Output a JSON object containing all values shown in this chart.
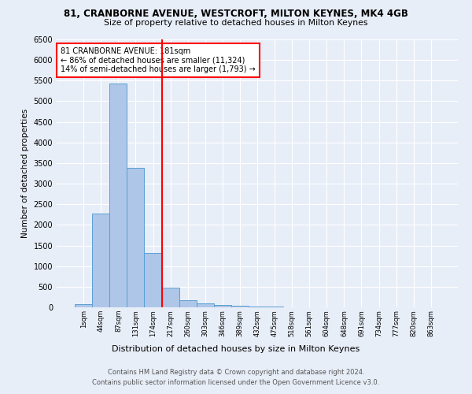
{
  "title": "81, CRANBORNE AVENUE, WESTCROFT, MILTON KEYNES, MK4 4GB",
  "subtitle": "Size of property relative to detached houses in Milton Keynes",
  "xlabel": "Distribution of detached houses by size in Milton Keynes",
  "ylabel": "Number of detached properties",
  "categories": [
    "1sqm",
    "44sqm",
    "87sqm",
    "131sqm",
    "174sqm",
    "217sqm",
    "260sqm",
    "303sqm",
    "346sqm",
    "389sqm",
    "432sqm",
    "475sqm",
    "518sqm",
    "561sqm",
    "604sqm",
    "648sqm",
    "691sqm",
    "734sqm",
    "777sqm",
    "820sqm",
    "863sqm"
  ],
  "bar_heights": [
    75,
    2280,
    5420,
    3380,
    1310,
    475,
    165,
    90,
    55,
    30,
    15,
    10,
    5,
    3,
    2,
    1,
    1,
    0,
    0,
    0,
    0
  ],
  "bar_color": "#aec6e8",
  "bar_edge_color": "#5a9fd4",
  "annotation_line1": "81 CRANBORNE AVENUE: 181sqm",
  "annotation_line2": "← 86% of detached houses are smaller (11,324)",
  "annotation_line3": "14% of semi-detached houses are larger (1,793) →",
  "ylim": [
    0,
    6500
  ],
  "yticks": [
    0,
    500,
    1000,
    1500,
    2000,
    2500,
    3000,
    3500,
    4000,
    4500,
    5000,
    5500,
    6000,
    6500
  ],
  "footer1": "Contains HM Land Registry data © Crown copyright and database right 2024.",
  "footer2": "Contains public sector information licensed under the Open Government Licence v3.0.",
  "bg_color": "#e8eef8",
  "plot_bg_color": "#e8eef8",
  "grid_color": "white"
}
